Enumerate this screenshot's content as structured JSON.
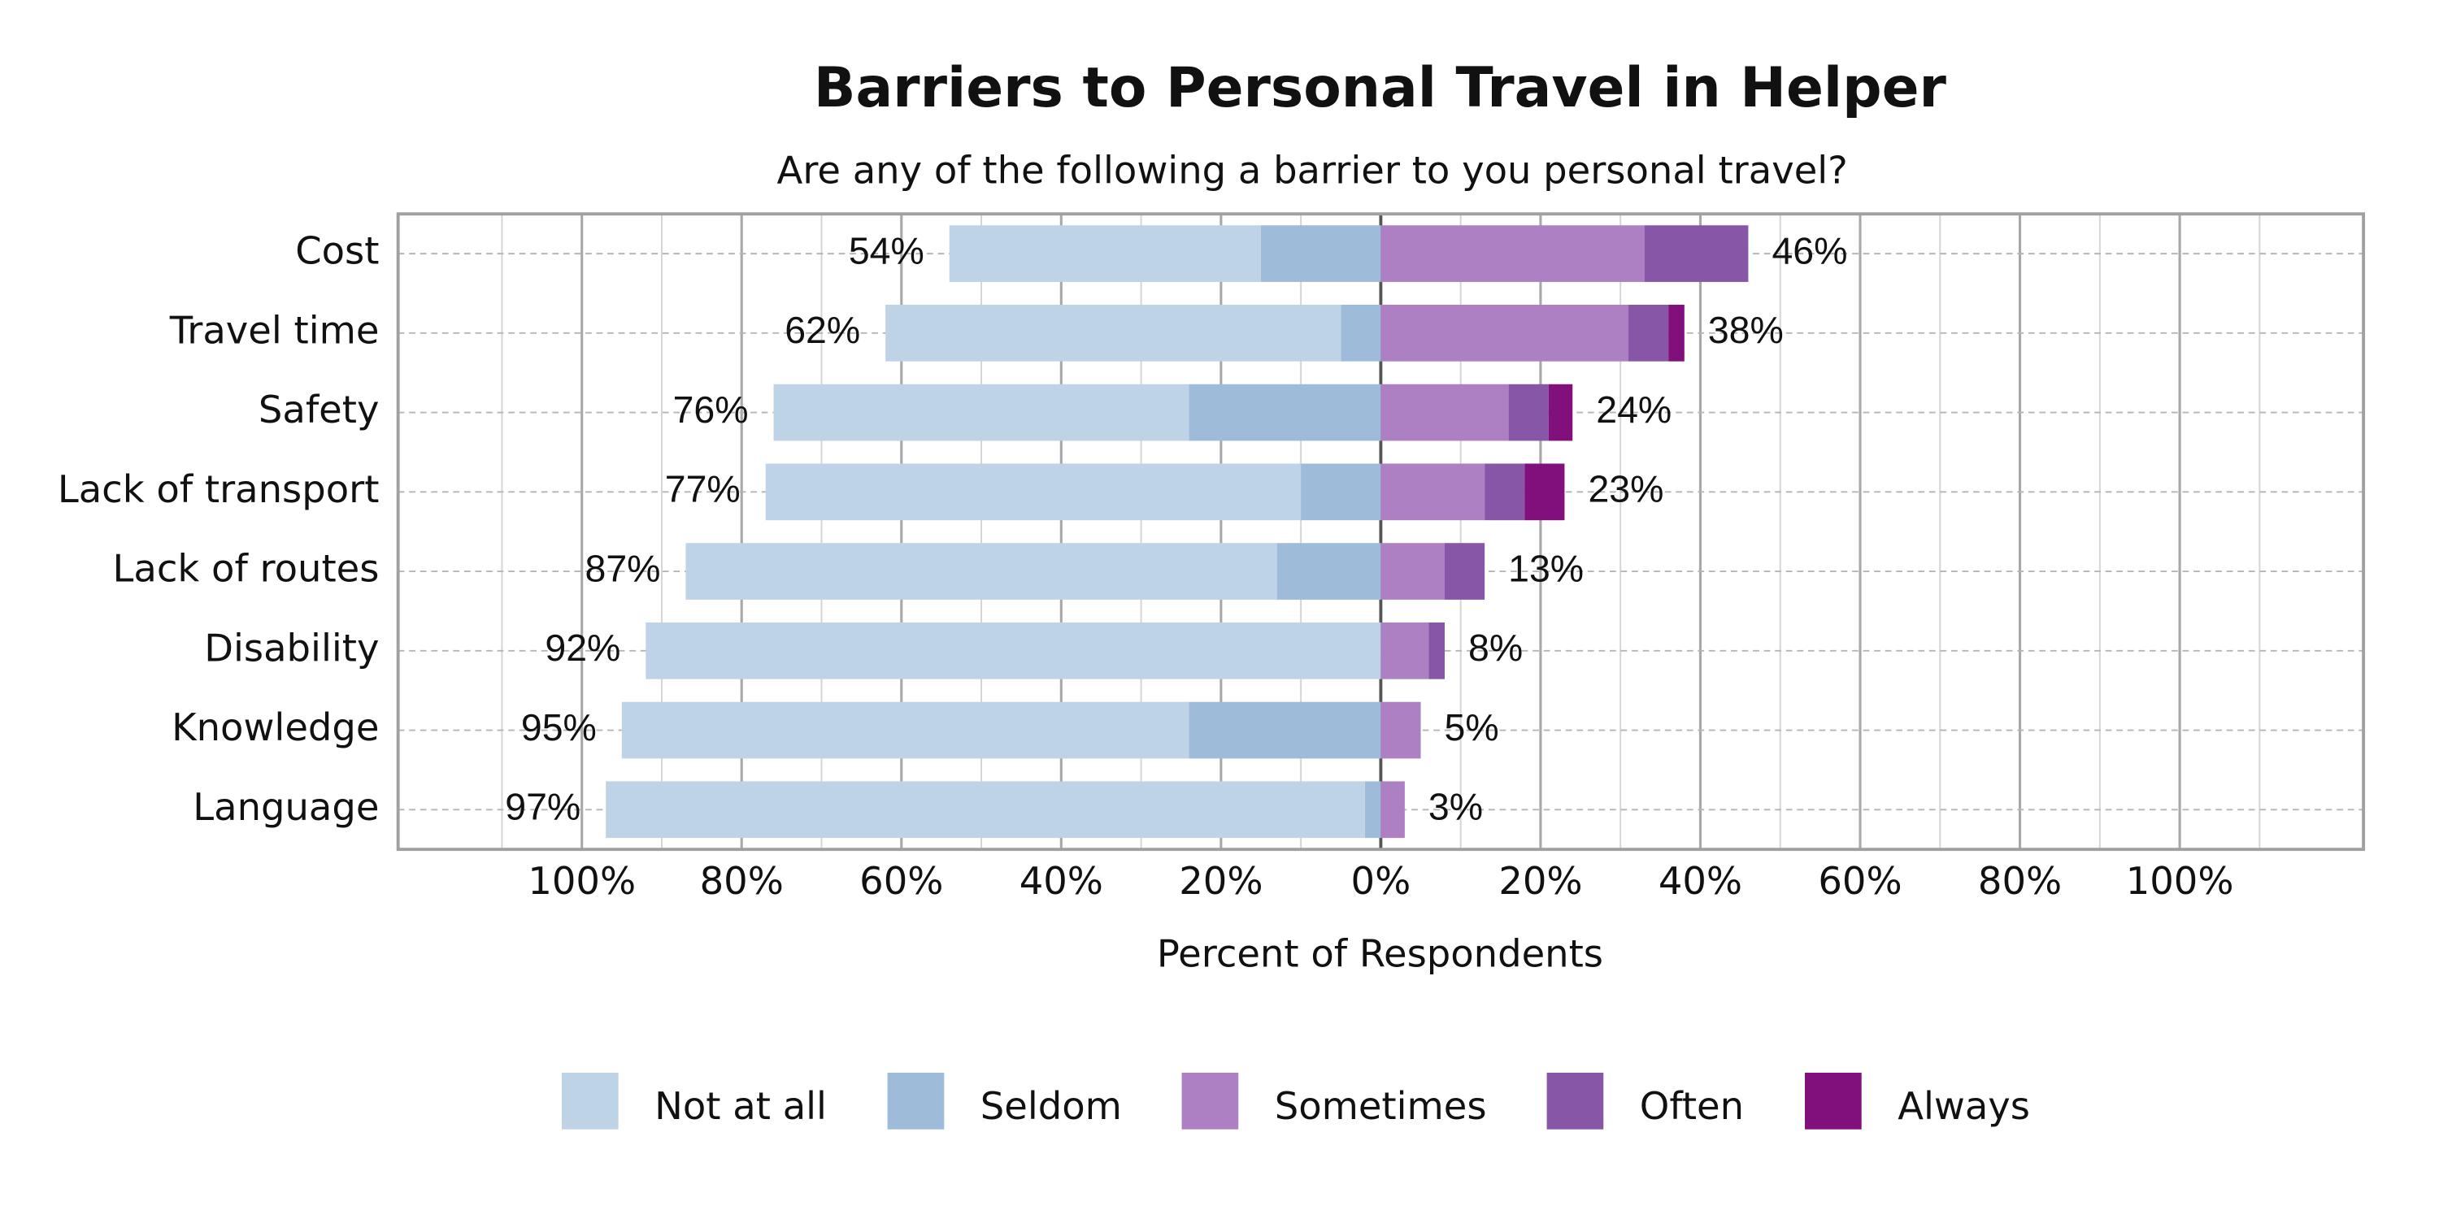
{
  "chart_data": {
    "type": "diverging-bar",
    "title": "Barriers to Personal Travel in Helper",
    "subtitle": "Are any of the following a barrier to you personal travel?",
    "x_label": "Percent of Respondents",
    "categories": [
      "Cost",
      "Travel time",
      "Safety",
      "Lack of transport",
      "Lack of routes",
      "Disability",
      "Knowledge",
      "Language"
    ],
    "series": [
      {
        "name": "Not at all",
        "color": "#bfd3e6",
        "side": "left",
        "values": [
          39,
          57,
          52,
          67,
          74,
          92,
          71,
          95
        ]
      },
      {
        "name": "Seldom",
        "color": "#9ebcda",
        "side": "left",
        "values": [
          15,
          5,
          24,
          10,
          13,
          0,
          24,
          2
        ]
      },
      {
        "name": "Sometimes",
        "color": "#ac80c3",
        "side": "right",
        "values": [
          33,
          31,
          16,
          13,
          8,
          6,
          5,
          3
        ]
      },
      {
        "name": "Often",
        "color": "#8856a7",
        "side": "right",
        "values": [
          13,
          5,
          5,
          5,
          5,
          2,
          0,
          0
        ]
      },
      {
        "name": "Always",
        "color": "#810f7c",
        "side": "right",
        "values": [
          0,
          2,
          3,
          5,
          0,
          0,
          0,
          0
        ]
      }
    ],
    "left_totals": {
      "values": [
        54,
        62,
        76,
        77,
        87,
        92,
        95,
        97
      ],
      "value_labels": [
        "54%",
        "62%",
        "76%",
        "77%",
        "87%",
        "92%",
        "95%",
        "97%"
      ]
    },
    "right_totals": {
      "values": [
        46,
        38,
        24,
        23,
        13,
        8,
        5,
        3
      ],
      "value_labels": [
        "46%",
        "38%",
        "24%",
        "23%",
        "13%",
        "8%",
        "5%",
        "3%"
      ]
    },
    "xlim": [
      -123,
      123
    ],
    "xticks": [
      {
        "value": -100,
        "label": "100%"
      },
      {
        "value": -80,
        "label": "80%"
      },
      {
        "value": -60,
        "label": "60%"
      },
      {
        "value": -40,
        "label": "40%"
      },
      {
        "value": -20,
        "label": "20%"
      },
      {
        "value": 0,
        "label": "0%"
      },
      {
        "value": 20,
        "label": "20%"
      },
      {
        "value": 40,
        "label": "40%"
      },
      {
        "value": 60,
        "label": "60%"
      },
      {
        "value": 80,
        "label": "80%"
      },
      {
        "value": 100,
        "label": "100%"
      }
    ],
    "minor_xticks": [
      -110,
      -90,
      -70,
      -50,
      -30,
      -10,
      10,
      30,
      50,
      70,
      90,
      110
    ],
    "grid": true
  }
}
